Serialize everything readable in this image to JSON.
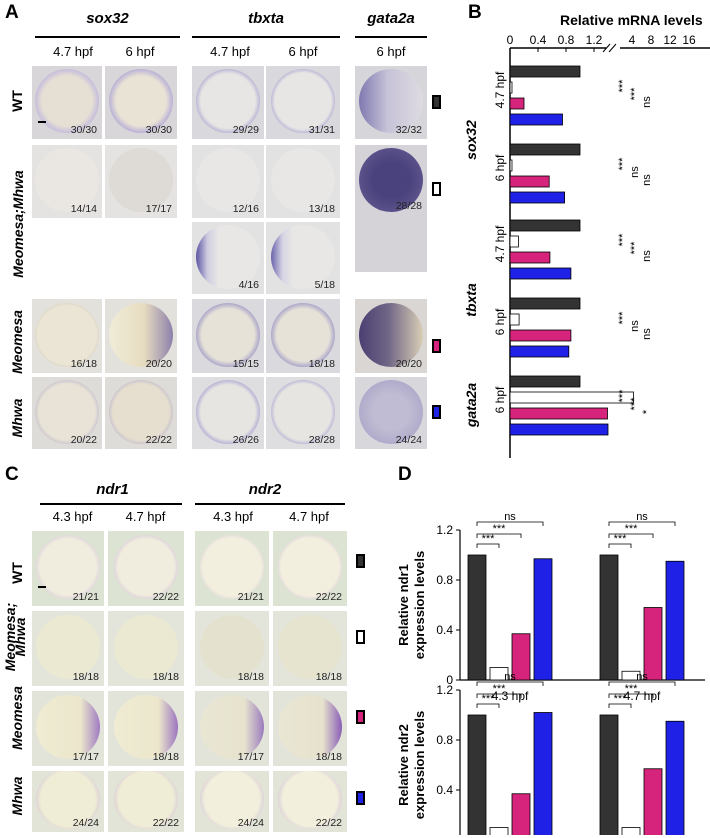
{
  "panel_labels": {
    "a": "A",
    "b": "B",
    "c": "C",
    "d": "D"
  },
  "colors": {
    "wt": "#333333",
    "meomesa_mhwa": "#ffffff",
    "meomesa": "#d6237b",
    "mhwa": "#1f22e6"
  },
  "panel_a": {
    "genes": {
      "sox32": "sox32",
      "tbxta": "tbxta",
      "gata2a": "gata2a"
    },
    "stages": {
      "s47": "4.7  hpf",
      "s6": "6 hpf",
      "s47b": "4.7  hpf",
      "s6b": "6 hpf",
      "s6c": "6 hpf"
    },
    "row_labels": {
      "wt": "WT",
      "mm": "Meomesa;Mhwa",
      "me": "Meomesa",
      "mh": "Mhwa"
    },
    "counts": {
      "wt": [
        "30/30",
        "30/30",
        "29/29",
        "31/31",
        "32/32"
      ],
      "mm": [
        "14/14",
        "17/17",
        "12/16",
        "13/18",
        "28/28"
      ],
      "mm2": [
        "4/16",
        "5/18"
      ],
      "me": [
        "16/18",
        "20/20",
        "15/15",
        "18/18",
        "20/20"
      ],
      "mh": [
        "20/22",
        "22/22",
        "26/26",
        "28/28",
        "24/24"
      ]
    }
  },
  "panel_c": {
    "genes": {
      "ndr1": "ndr1",
      "ndr2": "ndr2"
    },
    "stages": {
      "a": "4.3 hpf",
      "b": "4.7 hpf",
      "c": "4.3  hpf",
      "d": "4.7 hpf"
    },
    "row_labels": {
      "wt": "WT",
      "mm1": "Meomesa;",
      "mm2": "Mhwa",
      "me": "Meomesa",
      "mh": "Mhwa"
    },
    "counts": {
      "wt": [
        "21/21",
        "22/22",
        "21/21",
        "22/22"
      ],
      "mm": [
        "18/18",
        "18/18",
        "18/18",
        "18/18"
      ],
      "me": [
        "17/17",
        "18/18",
        "17/17",
        "18/18"
      ],
      "mh": [
        "24/24",
        "22/22",
        "24/24",
        "22/22"
      ]
    }
  },
  "chart_data": [
    {
      "panel": "B",
      "type": "bar",
      "title": "Relative mRNA levels",
      "axis_ticks_left": [
        "0",
        "0.4",
        "0.8",
        "1.2"
      ],
      "axis_ticks_right": [
        "4",
        "8",
        "12",
        "16"
      ],
      "axis_break": true,
      "groups": [
        {
          "gene": "sox32",
          "stage": "4.7 hpf",
          "values": [
            1.0,
            0.02,
            0.2,
            0.75
          ],
          "sig": [
            "***",
            "***",
            "ns"
          ]
        },
        {
          "gene": "sox32",
          "stage": "6 hpf",
          "values": [
            1.0,
            0.02,
            0.56,
            0.78
          ],
          "sig": [
            "***",
            "ns",
            "ns"
          ]
        },
        {
          "gene": "tbxta",
          "stage": "4.7 hpf",
          "values": [
            1.0,
            0.12,
            0.57,
            0.87
          ],
          "sig": [
            "***",
            "***",
            "ns"
          ]
        },
        {
          "gene": "tbxta",
          "stage": "6 hpf",
          "values": [
            1.0,
            0.13,
            0.87,
            0.84
          ],
          "sig": [
            "***",
            "ns",
            "ns"
          ]
        },
        {
          "gene": "gata2a",
          "stage": "6 hpf",
          "values": [
            1.0,
            6.5,
            1.3,
            1.4
          ],
          "sig": [
            "***",
            "***",
            "*"
          ]
        }
      ],
      "series": [
        {
          "name": "WT",
          "color": "#333333"
        },
        {
          "name": "Meomesa;Mhwa",
          "color": "#ffffff"
        },
        {
          "name": "Meomesa",
          "color": "#d6237b"
        },
        {
          "name": "Mhwa",
          "color": "#1f22e6"
        }
      ]
    },
    {
      "panel": "D",
      "type": "bar",
      "ylabel_lines": [
        "Relative ndr1",
        "expression levels"
      ],
      "categories": [
        "4.3 hpf",
        "4.7 hpf"
      ],
      "yticks": [
        "0",
        "0.4",
        "0.8",
        "1.2"
      ],
      "ylim": [
        0,
        1.2
      ],
      "values": [
        [
          1.0,
          0.1,
          0.37,
          0.97
        ],
        [
          1.0,
          0.07,
          0.58,
          0.95
        ]
      ],
      "sig": [
        [
          "***",
          "***",
          "ns"
        ],
        [
          "***",
          "***",
          "ns"
        ]
      ]
    },
    {
      "panel": "D",
      "type": "bar",
      "ylabel_lines": [
        "Relative ndr2",
        "expression levels"
      ],
      "categories": [
        "4.3 hpf",
        "4.7 hpf"
      ],
      "yticks": [
        "0",
        "0.4",
        "0.8",
        "1.2"
      ],
      "ylim": [
        0,
        1.2
      ],
      "values": [
        [
          1.0,
          0.1,
          0.37,
          1.02
        ],
        [
          1.0,
          0.1,
          0.57,
          0.95
        ]
      ],
      "sig": [
        [
          "***",
          "***",
          "ns"
        ],
        [
          "***",
          "***",
          "ns"
        ]
      ]
    }
  ]
}
